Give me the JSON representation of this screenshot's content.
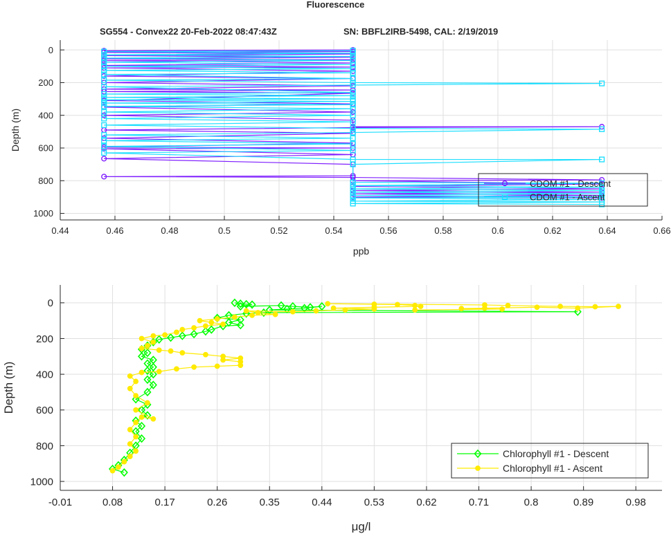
{
  "title": "Fluorescence",
  "subtitle_left": "SG554 - Convex22 20-Feb-2022 08:47:43Z",
  "subtitle_right": "SN: BBFL2IRB-5498, CAL: 2/19/2019",
  "chart_data": [
    {
      "type": "line",
      "xlabel": "ppb",
      "ylabel": "Depth (m)",
      "xlim": [
        0.44,
        0.66
      ],
      "ylim": [
        1040,
        -60
      ],
      "y_reversed": true,
      "xticks": [
        "0.44",
        "0.46",
        "0.48",
        "0.5",
        "0.52",
        "0.54",
        "0.56",
        "0.58",
        "0.6",
        "0.62",
        "0.64",
        "0.66"
      ],
      "xtick_values": [
        0.44,
        0.46,
        0.48,
        0.5,
        0.52,
        0.54,
        0.56,
        0.58,
        0.6,
        0.62,
        0.64,
        0.66
      ],
      "yticks": [
        "0",
        "200",
        "400",
        "600",
        "800",
        "1000"
      ],
      "ytick_values": [
        0,
        200,
        400,
        600,
        800,
        1000
      ],
      "grid": true,
      "legend_position": "bottom-right",
      "series": [
        {
          "name": "CDOM #1 - Descent",
          "color": "#7f1fff",
          "marker": "circle",
          "points": [
            [
              0.547,
              0
            ],
            [
              0.456,
              5
            ],
            [
              0.547,
              10
            ],
            [
              0.456,
              15
            ],
            [
              0.547,
              25
            ],
            [
              0.456,
              35
            ],
            [
              0.547,
              45
            ],
            [
              0.456,
              55
            ],
            [
              0.547,
              60
            ],
            [
              0.456,
              65
            ],
            [
              0.547,
              80
            ],
            [
              0.456,
              95
            ],
            [
              0.547,
              105
            ],
            [
              0.456,
              110
            ],
            [
              0.547,
              130
            ],
            [
              0.456,
              160
            ],
            [
              0.547,
              175
            ],
            [
              0.456,
              200
            ],
            [
              0.547,
              220
            ],
            [
              0.456,
              240
            ],
            [
              0.547,
              245
            ],
            [
              0.456,
              255
            ],
            [
              0.547,
              265
            ],
            [
              0.456,
              310
            ],
            [
              0.547,
              330
            ],
            [
              0.456,
              350
            ],
            [
              0.547,
              380
            ],
            [
              0.456,
              400
            ],
            [
              0.547,
              430
            ],
            [
              0.547,
              470
            ],
            [
              0.638,
              470
            ],
            [
              0.547,
              475
            ],
            [
              0.456,
              490
            ],
            [
              0.547,
              510
            ],
            [
              0.456,
              540
            ],
            [
              0.547,
              570
            ],
            [
              0.456,
              595
            ],
            [
              0.547,
              600
            ],
            [
              0.456,
              605
            ],
            [
              0.547,
              640
            ],
            [
              0.456,
              665
            ],
            [
              0.547,
              700
            ],
            [
              0.547,
              770
            ],
            [
              0.456,
              775
            ],
            [
              0.547,
              780
            ],
            [
              0.638,
              795
            ],
            [
              0.547,
              800
            ],
            [
              0.638,
              820
            ],
            [
              0.547,
              835
            ],
            [
              0.638,
              850
            ],
            [
              0.547,
              860
            ],
            [
              0.638,
              870
            ],
            [
              0.547,
              880
            ],
            [
              0.638,
              890
            ],
            [
              0.547,
              900
            ],
            [
              0.638,
              905
            ]
          ]
        },
        {
          "name": "CDOM #1 - Ascent",
          "color": "#1fdfff",
          "marker": "square",
          "points": [
            [
              0.638,
              945
            ],
            [
              0.547,
              940
            ],
            [
              0.638,
              930
            ],
            [
              0.547,
              925
            ],
            [
              0.638,
              915
            ],
            [
              0.547,
              905
            ],
            [
              0.638,
              900
            ],
            [
              0.547,
              890
            ],
            [
              0.638,
              880
            ],
            [
              0.547,
              870
            ],
            [
              0.638,
              860
            ],
            [
              0.547,
              850
            ],
            [
              0.638,
              840
            ],
            [
              0.547,
              830
            ],
            [
              0.638,
              815
            ],
            [
              0.547,
              810
            ],
            [
              0.547,
              700
            ],
            [
              0.638,
              670
            ],
            [
              0.547,
              670
            ],
            [
              0.456,
              630
            ],
            [
              0.547,
              615
            ],
            [
              0.456,
              590
            ],
            [
              0.547,
              575
            ],
            [
              0.456,
              555
            ],
            [
              0.547,
              540
            ],
            [
              0.456,
              520
            ],
            [
              0.547,
              505
            ],
            [
              0.638,
              485
            ],
            [
              0.547,
              480
            ],
            [
              0.456,
              460
            ],
            [
              0.547,
              440
            ],
            [
              0.456,
              420
            ],
            [
              0.547,
              400
            ],
            [
              0.456,
              380
            ],
            [
              0.547,
              360
            ],
            [
              0.456,
              345
            ],
            [
              0.547,
              335
            ],
            [
              0.456,
              325
            ],
            [
              0.547,
              315
            ],
            [
              0.456,
              305
            ],
            [
              0.547,
              300
            ],
            [
              0.456,
              290
            ],
            [
              0.547,
              280
            ],
            [
              0.456,
              270
            ],
            [
              0.547,
              260
            ],
            [
              0.456,
              225
            ],
            [
              0.547,
              215
            ],
            [
              0.638,
              205
            ],
            [
              0.547,
              200
            ],
            [
              0.456,
              185
            ],
            [
              0.547,
              175
            ],
            [
              0.456,
              150
            ],
            [
              0.547,
              140
            ],
            [
              0.456,
              125
            ],
            [
              0.547,
              115
            ],
            [
              0.456,
              100
            ],
            [
              0.547,
              90
            ],
            [
              0.456,
              75
            ],
            [
              0.547,
              65
            ],
            [
              0.456,
              50
            ],
            [
              0.547,
              40
            ],
            [
              0.456,
              30
            ],
            [
              0.547,
              20
            ],
            [
              0.456,
              10
            ],
            [
              0.547,
              5
            ]
          ]
        }
      ]
    },
    {
      "type": "line",
      "xlabel": "μg/l",
      "ylabel": "Depth (m)",
      "xlim": [
        -0.01,
        1.025
      ],
      "ylim": [
        1050,
        -100
      ],
      "y_reversed": true,
      "xticks": [
        "-0.01",
        "0.08",
        "0.17",
        "0.26",
        "0.35",
        "0.44",
        "0.53",
        "0.62",
        "0.71",
        "0.8",
        "0.89",
        "0.98"
      ],
      "xtick_values": [
        -0.01,
        0.08,
        0.17,
        0.26,
        0.35,
        0.44,
        0.53,
        0.62,
        0.71,
        0.8,
        0.89,
        0.98
      ],
      "yticks": [
        "0",
        "200",
        "400",
        "600",
        "800",
        "1000"
      ],
      "ytick_values": [
        0,
        200,
        400,
        600,
        800,
        1000
      ],
      "grid": true,
      "legend_position": "bottom-right",
      "series": [
        {
          "name": "Chlorophyll #1 - Descent",
          "color": "#00ff00",
          "marker": "diamond",
          "points": [
            [
              0.29,
              0
            ],
            [
              0.3,
              5
            ],
            [
              0.31,
              8
            ],
            [
              0.32,
              10
            ],
            [
              0.3,
              20
            ],
            [
              0.37,
              15
            ],
            [
              0.39,
              20
            ],
            [
              0.42,
              25
            ],
            [
              0.44,
              20
            ],
            [
              0.41,
              30
            ],
            [
              0.38,
              35
            ],
            [
              0.35,
              40
            ],
            [
              0.88,
              50
            ],
            [
              0.34,
              55
            ],
            [
              0.31,
              60
            ],
            [
              0.28,
              70
            ],
            [
              0.26,
              85
            ],
            [
              0.3,
              95
            ],
            [
              0.28,
              110
            ],
            [
              0.3,
              125
            ],
            [
              0.27,
              130
            ],
            [
              0.25,
              150
            ],
            [
              0.24,
              160
            ],
            [
              0.22,
              175
            ],
            [
              0.2,
              185
            ],
            [
              0.18,
              195
            ],
            [
              0.16,
              205
            ],
            [
              0.15,
              220
            ],
            [
              0.14,
              240
            ],
            [
              0.13,
              260
            ],
            [
              0.14,
              280
            ],
            [
              0.13,
              300
            ],
            [
              0.15,
              320
            ],
            [
              0.14,
              340
            ],
            [
              0.15,
              360
            ],
            [
              0.14,
              380
            ],
            [
              0.15,
              400
            ],
            [
              0.14,
              430
            ],
            [
              0.15,
              460
            ],
            [
              0.14,
              500
            ],
            [
              0.12,
              540
            ],
            [
              0.14,
              570
            ],
            [
              0.13,
              600
            ],
            [
              0.14,
              630
            ],
            [
              0.12,
              660
            ],
            [
              0.13,
              690
            ],
            [
              0.12,
              720
            ],
            [
              0.13,
              760
            ],
            [
              0.12,
              800
            ],
            [
              0.11,
              840
            ],
            [
              0.1,
              880
            ],
            [
              0.09,
              910
            ],
            [
              0.08,
              930
            ],
            [
              0.1,
              950
            ]
          ]
        },
        {
          "name": "Chlorophyll #1 - Ascent",
          "color": "#ffea00",
          "marker": "circle",
          "points": [
            [
              0.08,
              940
            ],
            [
              0.09,
              920
            ],
            [
              0.1,
              890
            ],
            [
              0.11,
              860
            ],
            [
              0.12,
              830
            ],
            [
              0.11,
              790
            ],
            [
              0.12,
              750
            ],
            [
              0.11,
              710
            ],
            [
              0.12,
              670
            ],
            [
              0.13,
              640
            ],
            [
              0.15,
              650
            ],
            [
              0.12,
              600
            ],
            [
              0.14,
              560
            ],
            [
              0.12,
              520
            ],
            [
              0.11,
              480
            ],
            [
              0.12,
              440
            ],
            [
              0.11,
              410
            ],
            [
              0.13,
              390
            ],
            [
              0.16,
              385
            ],
            [
              0.19,
              370
            ],
            [
              0.22,
              360
            ],
            [
              0.26,
              355
            ],
            [
              0.3,
              350
            ],
            [
              0.3,
              330
            ],
            [
              0.27,
              320
            ],
            [
              0.3,
              310
            ],
            [
              0.27,
              300
            ],
            [
              0.24,
              290
            ],
            [
              0.2,
              280
            ],
            [
              0.18,
              270
            ],
            [
              0.16,
              265
            ],
            [
              0.13,
              255
            ],
            [
              0.14,
              240
            ],
            [
              0.15,
              220
            ],
            [
              0.13,
              200
            ],
            [
              0.15,
              185
            ],
            [
              0.17,
              180
            ],
            [
              0.19,
              165
            ],
            [
              0.2,
              150
            ],
            [
              0.22,
              140
            ],
            [
              0.24,
              130
            ],
            [
              0.27,
              120
            ],
            [
              0.25,
              110
            ],
            [
              0.23,
              100
            ],
            [
              0.26,
              90
            ],
            [
              0.29,
              80
            ],
            [
              0.32,
              70
            ],
            [
              0.36,
              65
            ],
            [
              0.33,
              55
            ],
            [
              0.31,
              45
            ],
            [
              0.39,
              50
            ],
            [
              0.43,
              45
            ],
            [
              0.48,
              40
            ],
            [
              0.53,
              35
            ],
            [
              0.46,
              30
            ],
            [
              0.53,
              25
            ],
            [
              0.61,
              20
            ],
            [
              0.6,
              15
            ],
            [
              0.57,
              10
            ],
            [
              0.53,
              8
            ],
            [
              0.45,
              5
            ],
            [
              0.72,
              12
            ],
            [
              0.76,
              15
            ],
            [
              0.85,
              20
            ],
            [
              0.91,
              22
            ],
            [
              0.95,
              20
            ],
            [
              0.88,
              30
            ],
            [
              0.81,
              25
            ],
            [
              0.72,
              30
            ],
            [
              0.68,
              32
            ],
            [
              0.75,
              35
            ],
            [
              0.6,
              40
            ]
          ]
        }
      ]
    }
  ]
}
